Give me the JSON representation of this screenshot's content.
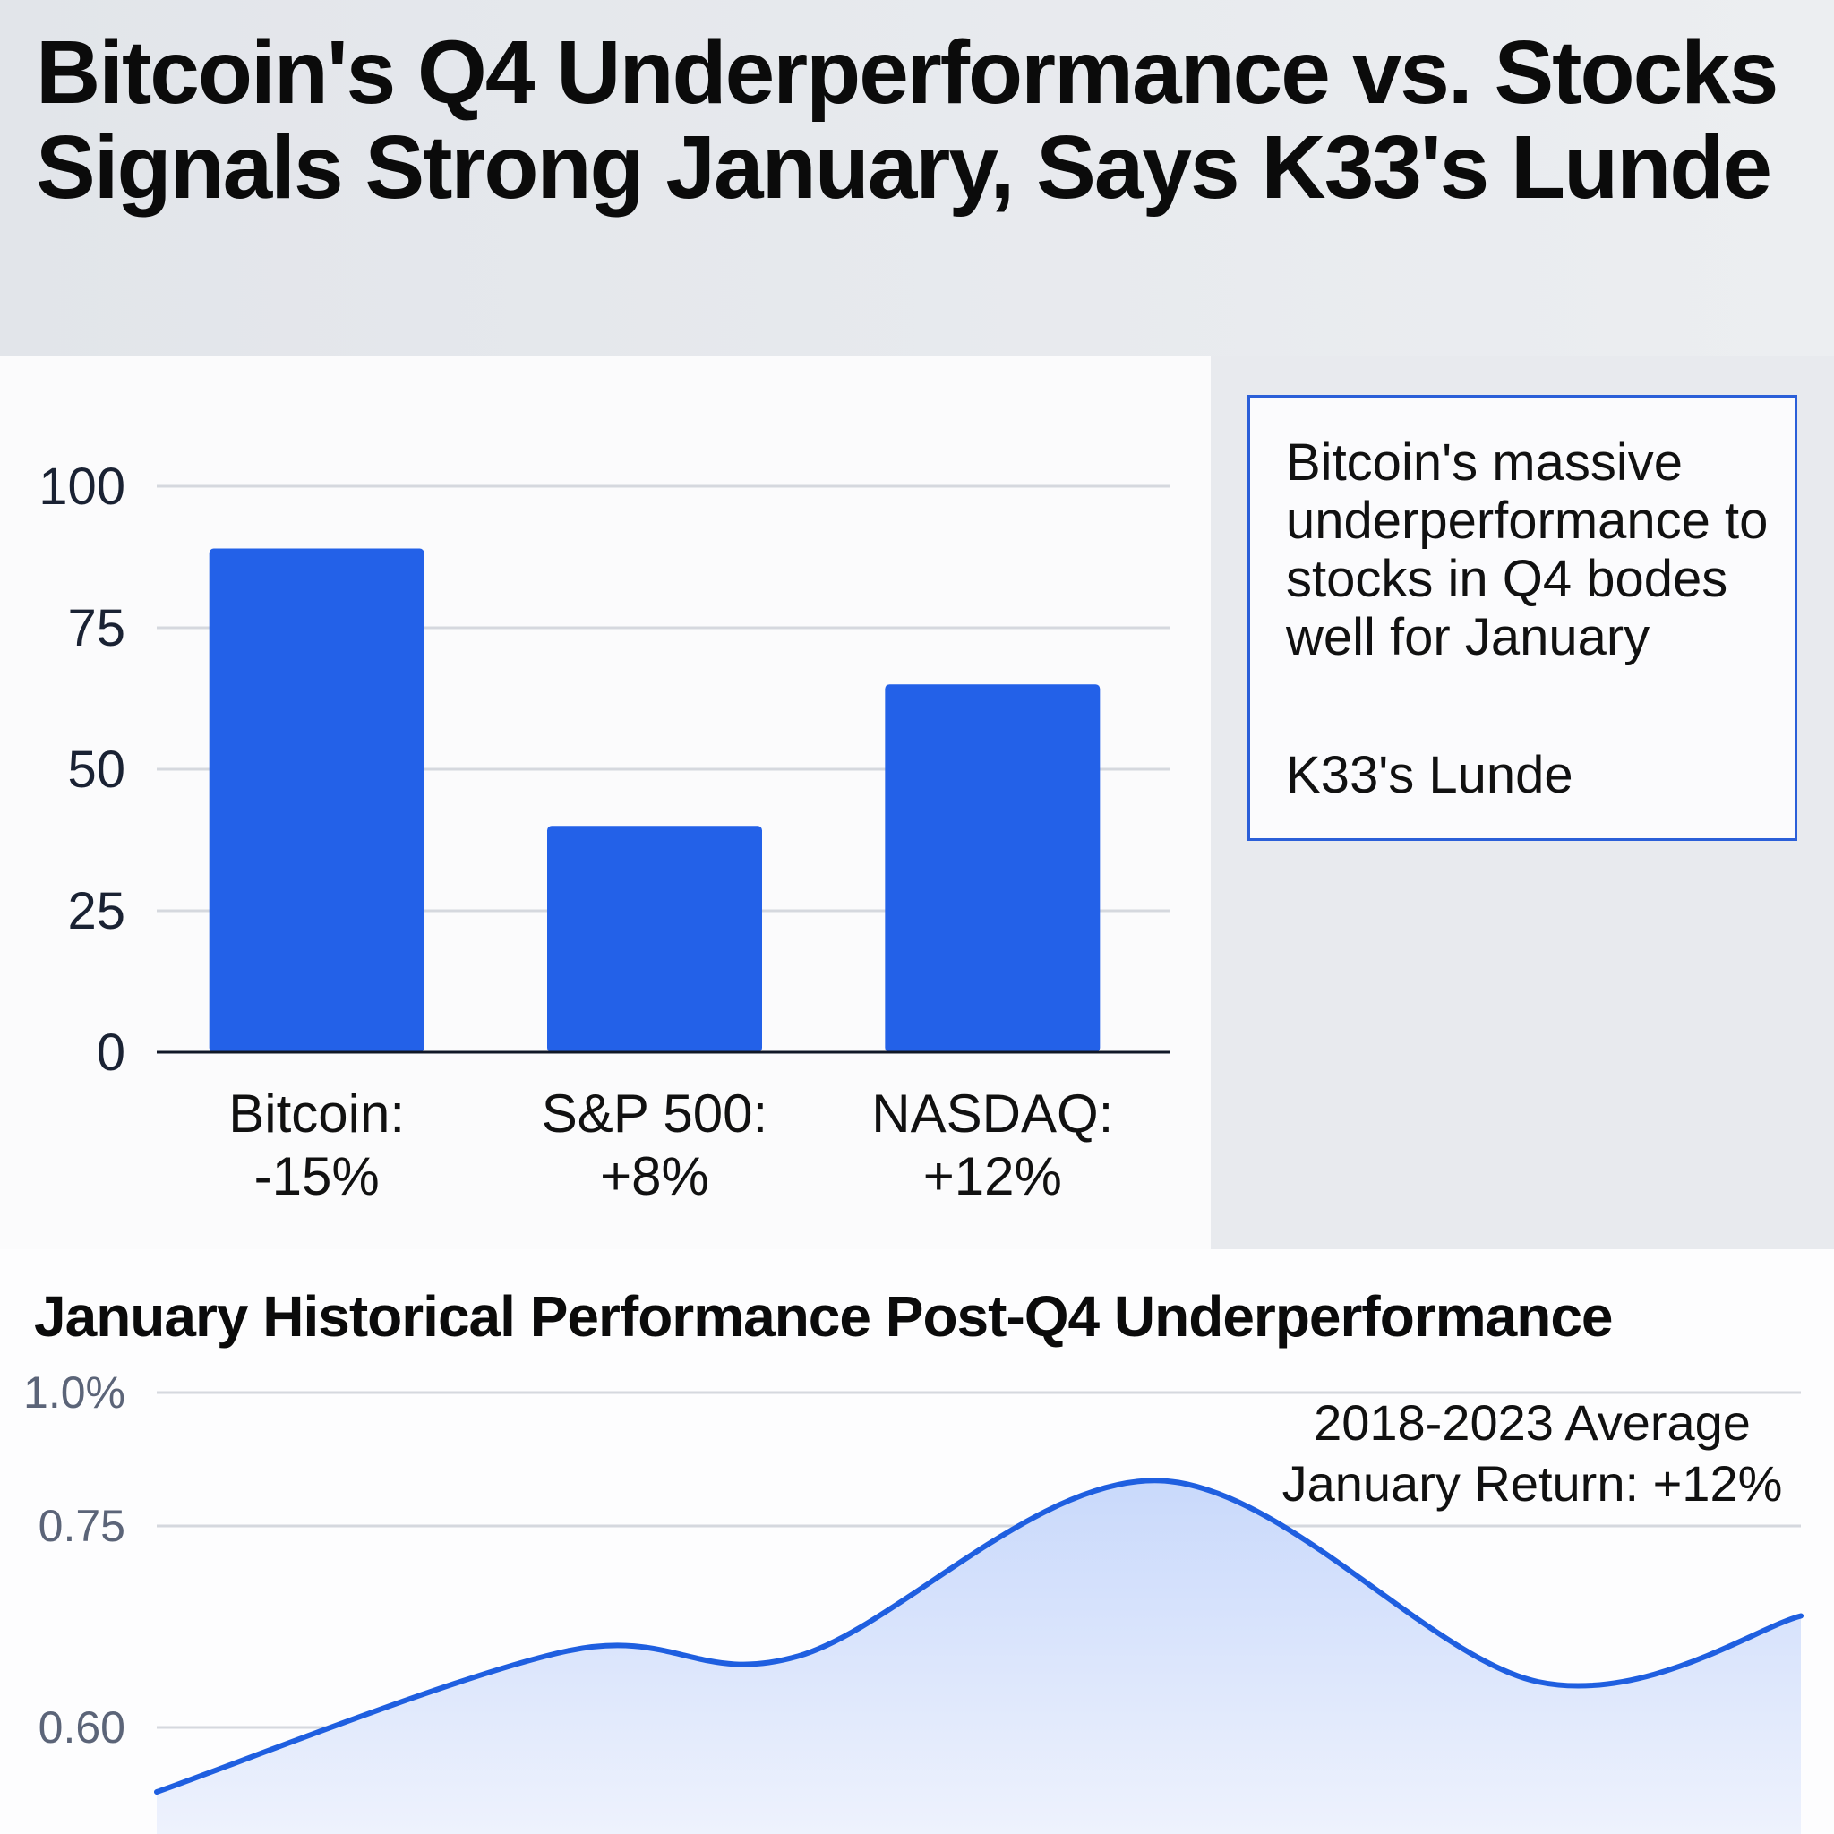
{
  "header": {
    "title": "Bitcoin's Q4 Underperformance vs. Stocks Signals Strong January, Says K33's Lunde"
  },
  "quote": {
    "text": "Bitcoin's massive underperformance to stocks in Q4 bodes well for January",
    "attribution": "K33's Lunde"
  },
  "colors": {
    "bar": "#2361e8",
    "line": "#1f5fe0",
    "area": "#c9d9fb",
    "grid": "#d5d8de"
  },
  "chart_data": [
    {
      "type": "bar",
      "categories": [
        "Bitcoin:\n-15%",
        "S&P 500:\n+8%",
        "NASDAQ:\n+12%"
      ],
      "category_lines": [
        [
          "Bitcoin:",
          "-15%"
        ],
        [
          "S&P 500:",
          "+8%"
        ],
        [
          "NASDAQ:",
          "+12%"
        ]
      ],
      "values": [
        89,
        40,
        65
      ],
      "ylim": [
        0,
        100
      ],
      "yticks": [
        0,
        25,
        50,
        75,
        100
      ],
      "ytick_labels": [
        "0",
        "25",
        "50",
        "75",
        "100"
      ],
      "grid": true
    },
    {
      "type": "area",
      "title": "January Historical Performance Post-Q4 Underperformance",
      "annotation": [
        "2018-2023 Average",
        "January Return: +12%"
      ],
      "yticks": [
        0.6,
        0.75,
        1.0
      ],
      "ytick_labels": [
        "0.60",
        "0.75",
        "1.0%"
      ],
      "x": [
        0,
        2.5,
        3.9,
        6.1,
        8.4,
        10
      ],
      "y": [
        0.552,
        0.657,
        0.653,
        0.835,
        0.634,
        0.683
      ],
      "grid": true
    }
  ]
}
